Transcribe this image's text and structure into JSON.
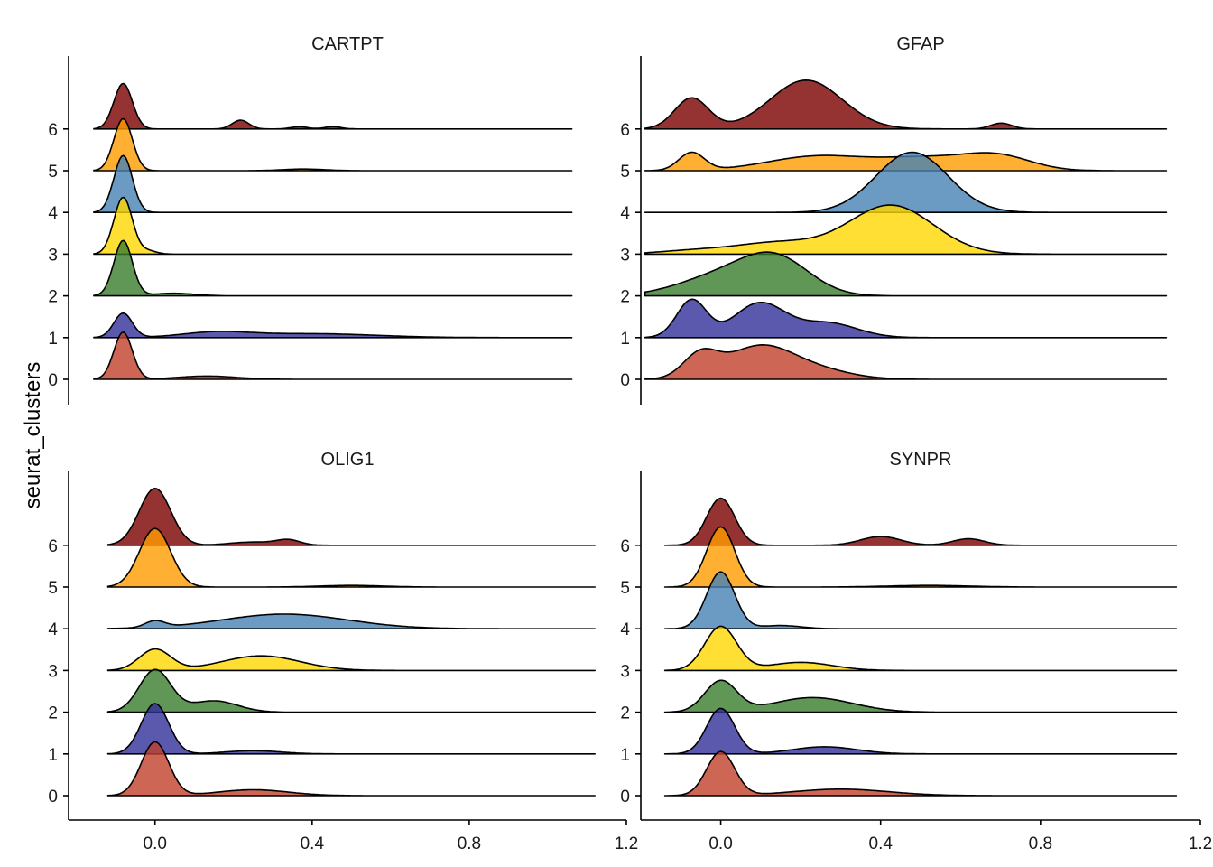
{
  "chart_data": {
    "type": "ridgeline",
    "ylabel": "seurat_clusters",
    "xlabel": "",
    "y_categories": [
      "0",
      "1",
      "2",
      "3",
      "4",
      "5",
      "6"
    ],
    "x_ticks": [
      "0.0",
      "0.4",
      "0.8",
      "1.2"
    ],
    "colors": {
      "0": "#c1402a",
      "1": "#31309a",
      "2": "#3a7d2c",
      "3": "#ffd700",
      "4": "#4682b4",
      "5": "#ff9c00",
      "6": "#7b0000"
    },
    "facets": [
      {
        "title": "CARTPT",
        "xlim": [
          -0.13,
          1.2
        ],
        "series": [
          {
            "cluster": "0",
            "range": [
              -0.07,
              1.07
            ],
            "peaks": [
              [
                0,
                1.45,
                0.022
              ],
              [
                0.2,
                0.1,
                0.07
              ]
            ]
          },
          {
            "cluster": "1",
            "range": [
              -0.07,
              1.07
            ],
            "peaks": [
              [
                0,
                0.75,
                0.022
              ],
              [
                0.22,
                0.15,
                0.08
              ],
              [
                0.45,
                0.12,
                0.15
              ]
            ]
          },
          {
            "cluster": "2",
            "range": [
              -0.07,
              1.07
            ],
            "peaks": [
              [
                0,
                1.7,
                0.022
              ],
              [
                0.12,
                0.08,
                0.05
              ]
            ]
          },
          {
            "cluster": "3",
            "range": [
              -0.07,
              1.07
            ],
            "peaks": [
              [
                0,
                1.75,
                0.022
              ],
              [
                0.06,
                0.1,
                0.02
              ]
            ]
          },
          {
            "cluster": "4",
            "range": [
              -0.07,
              1.07
            ],
            "peaks": [
              [
                0,
                1.75,
                0.022
              ]
            ]
          },
          {
            "cluster": "5",
            "range": [
              -0.07,
              1.07
            ],
            "peaks": [
              [
                0,
                1.6,
                0.022
              ],
              [
                0.43,
                0.05,
                0.05
              ]
            ]
          },
          {
            "cluster": "6",
            "range": [
              -0.07,
              1.07
            ],
            "peaks": [
              [
                0,
                1.4,
                0.022
              ],
              [
                0.28,
                0.27,
                0.02
              ],
              [
                0.42,
                0.07,
                0.02
              ],
              [
                0.5,
                0.07,
                0.02
              ]
            ]
          }
        ]
      },
      {
        "title": "GFAP",
        "xlim": [
          -0.12,
          1.2
        ],
        "series": [
          {
            "cluster": "0",
            "range": [
              -0.11,
              1.12
            ],
            "peaks": [
              [
                0.02,
                0.7,
                0.04
              ],
              [
                0.16,
                1.0,
                0.08
              ],
              [
                0.3,
                0.25,
                0.08
              ]
            ]
          },
          {
            "cluster": "1",
            "range": [
              -0.11,
              1.12
            ],
            "peaks": [
              [
                0.0,
                1.15,
                0.035
              ],
              [
                0.16,
                1.05,
                0.06
              ],
              [
                0.32,
                0.45,
                0.07
              ]
            ]
          },
          {
            "cluster": "2",
            "range": [
              -0.11,
              1.12
            ],
            "peaks": [
              [
                0.07,
                0.6,
                0.1
              ],
              [
                0.2,
                1.05,
                0.08
              ]
            ]
          },
          {
            "cluster": "3",
            "range": [
              -0.11,
              1.12
            ],
            "peaks": [
              [
                0.0,
                0.1,
                0.08
              ],
              [
                0.2,
                0.35,
                0.1
              ],
              [
                0.47,
                1.5,
                0.1
              ]
            ]
          },
          {
            "cluster": "4",
            "range": [
              -0.11,
              1.12
            ],
            "peaks": [
              [
                0.52,
                1.85,
                0.085
              ]
            ]
          },
          {
            "cluster": "5",
            "range": [
              -0.11,
              1.12
            ],
            "peaks": [
              [
                0.0,
                0.55,
                0.03
              ],
              [
                0.3,
                0.45,
                0.12
              ],
              [
                0.55,
                0.35,
                0.1
              ],
              [
                0.72,
                0.45,
                0.08
              ]
            ]
          },
          {
            "cluster": "6",
            "range": [
              -0.11,
              1.12
            ],
            "peaks": [
              [
                0.0,
                0.95,
                0.04
              ],
              [
                0.27,
                1.5,
                0.085
              ],
              [
                0.73,
                0.18,
                0.025
              ]
            ]
          }
        ]
      },
      {
        "title": "OLIG1",
        "xlim": [
          -0.22,
          1.2
        ],
        "series": [
          {
            "cluster": "0",
            "range": [
              -0.12,
              1.12
            ],
            "peaks": [
              [
                0,
                1.65,
                0.035
              ],
              [
                0.25,
                0.18,
                0.09
              ]
            ]
          },
          {
            "cluster": "1",
            "range": [
              -0.12,
              1.12
            ],
            "peaks": [
              [
                0,
                1.55,
                0.035
              ],
              [
                0.25,
                0.1,
                0.07
              ]
            ]
          },
          {
            "cluster": "2",
            "range": [
              -0.12,
              1.12
            ],
            "peaks": [
              [
                0,
                1.3,
                0.04
              ],
              [
                0.15,
                0.35,
                0.06
              ]
            ]
          },
          {
            "cluster": "3",
            "range": [
              -0.12,
              1.12
            ],
            "peaks": [
              [
                0,
                0.65,
                0.04
              ],
              [
                0.27,
                0.45,
                0.1
              ]
            ]
          },
          {
            "cluster": "4",
            "range": [
              -0.12,
              1.12
            ],
            "peaks": [
              [
                0,
                0.2,
                0.025
              ],
              [
                0.33,
                0.45,
                0.16
              ]
            ]
          },
          {
            "cluster": "5",
            "range": [
              -0.12,
              1.12
            ],
            "peaks": [
              [
                0,
                1.8,
                0.04
              ],
              [
                0.5,
                0.05,
                0.08
              ]
            ]
          },
          {
            "cluster": "6",
            "range": [
              -0.12,
              1.12
            ],
            "peaks": [
              [
                0,
                1.75,
                0.04
              ],
              [
                0.25,
                0.1,
                0.06
              ],
              [
                0.34,
                0.15,
                0.03
              ]
            ]
          }
        ]
      },
      {
        "title": "SYNPR",
        "xlim": [
          -0.2,
          1.2
        ],
        "series": [
          {
            "cluster": "0",
            "range": [
              -0.14,
              1.14
            ],
            "peaks": [
              [
                0,
                1.35,
                0.035
              ],
              [
                0.3,
                0.2,
                0.12
              ]
            ]
          },
          {
            "cluster": "1",
            "range": [
              -0.14,
              1.14
            ],
            "peaks": [
              [
                0,
                1.4,
                0.035
              ],
              [
                0.26,
                0.22,
                0.08
              ]
            ]
          },
          {
            "cluster": "2",
            "range": [
              -0.14,
              1.14
            ],
            "peaks": [
              [
                0,
                0.95,
                0.04
              ],
              [
                0.23,
                0.45,
                0.1
              ]
            ]
          },
          {
            "cluster": "3",
            "range": [
              -0.14,
              1.14
            ],
            "peaks": [
              [
                0,
                1.35,
                0.04
              ],
              [
                0.2,
                0.25,
                0.08
              ]
            ]
          },
          {
            "cluster": "4",
            "range": [
              -0.14,
              1.14
            ],
            "peaks": [
              [
                0,
                1.75,
                0.035
              ],
              [
                0.15,
                0.1,
                0.05
              ]
            ]
          },
          {
            "cluster": "5",
            "range": [
              -0.14,
              1.14
            ],
            "peaks": [
              [
                0,
                1.85,
                0.035
              ],
              [
                0.52,
                0.05,
                0.1
              ]
            ]
          },
          {
            "cluster": "6",
            "range": [
              -0.14,
              1.14
            ],
            "peaks": [
              [
                0,
                1.45,
                0.035
              ],
              [
                0.4,
                0.27,
                0.05
              ],
              [
                0.62,
                0.2,
                0.04
              ]
            ]
          }
        ]
      }
    ]
  }
}
